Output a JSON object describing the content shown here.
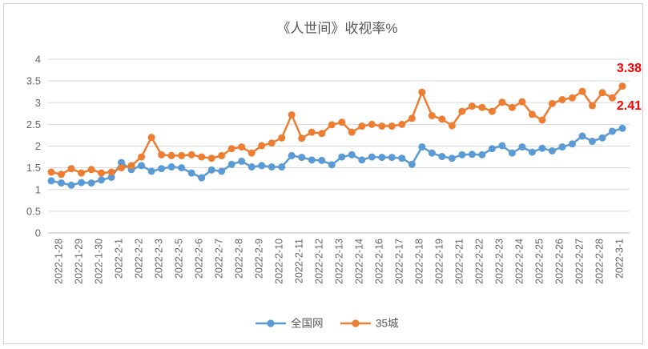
{
  "chart_data": {
    "type": "line",
    "title": "《人世间》收视率%",
    "grid": "horizontal",
    "legend_position": "bottom",
    "ylim": [
      0,
      4
    ],
    "y_ticks": [
      0,
      0.5,
      1,
      1.5,
      2,
      2.5,
      3,
      3.5,
      4
    ],
    "points_per_label": 2,
    "x_tick_labels": [
      "2022-1-28",
      "2022-1-29",
      "2022-1-30",
      "2022-2-1",
      "2022-2-2",
      "2022-2-3",
      "2022-2-5",
      "2022-2-6",
      "2022-2-7",
      "2022-2-8",
      "2022-2-9",
      "2022-2-10",
      "2022-2-11",
      "2022-2-12",
      "2022-2-13",
      "2022-2-14",
      "2022-2-16",
      "2022-2-17",
      "2022-2-18",
      "2022-2-19",
      "2022-2-21",
      "2022-2-22",
      "2022-2-23",
      "2022-2-24",
      "2022-2-25",
      "2022-2-26",
      "2022-2-27",
      "2022-2-28",
      "2022-3-1"
    ],
    "series": [
      {
        "name": "全国网",
        "color": "#5B9BD5",
        "values": [
          1.2,
          1.15,
          1.1,
          1.16,
          1.15,
          1.22,
          1.28,
          1.62,
          1.46,
          1.55,
          1.42,
          1.48,
          1.52,
          1.5,
          1.38,
          1.27,
          1.45,
          1.42,
          1.58,
          1.65,
          1.52,
          1.55,
          1.52,
          1.52,
          1.78,
          1.74,
          1.68,
          1.67,
          1.57,
          1.75,
          1.8,
          1.68,
          1.75,
          1.74,
          1.74,
          1.72,
          1.58,
          1.98,
          1.84,
          1.76,
          1.72,
          1.8,
          1.81,
          1.8,
          1.94,
          2.01,
          1.84,
          1.98,
          1.86,
          1.95,
          1.89,
          1.98,
          2.05,
          2.23,
          2.11,
          2.19,
          2.34,
          2.41
        ]
      },
      {
        "name": "35城",
        "color": "#ED7D31",
        "values": [
          1.4,
          1.35,
          1.48,
          1.38,
          1.46,
          1.38,
          1.4,
          1.5,
          1.55,
          1.75,
          2.2,
          1.8,
          1.78,
          1.78,
          1.8,
          1.75,
          1.72,
          1.78,
          1.94,
          1.98,
          1.84,
          2.01,
          2.07,
          2.19,
          2.72,
          2.18,
          2.32,
          2.29,
          2.49,
          2.55,
          2.32,
          2.46,
          2.5,
          2.46,
          2.46,
          2.5,
          2.64,
          3.24,
          2.7,
          2.62,
          2.47,
          2.8,
          2.92,
          2.89,
          2.8,
          3.01,
          2.89,
          3.02,
          2.73,
          2.6,
          2.98,
          3.07,
          3.11,
          3.26,
          2.93,
          3.23,
          3.11,
          3.38
        ]
      }
    ],
    "annotations": [
      {
        "text": "3.38",
        "series": "35城",
        "position": "last-point",
        "color": "#FF0000"
      },
      {
        "text": "2.41",
        "series": "全国网",
        "position": "last-point",
        "color": "#FF0000"
      }
    ]
  }
}
